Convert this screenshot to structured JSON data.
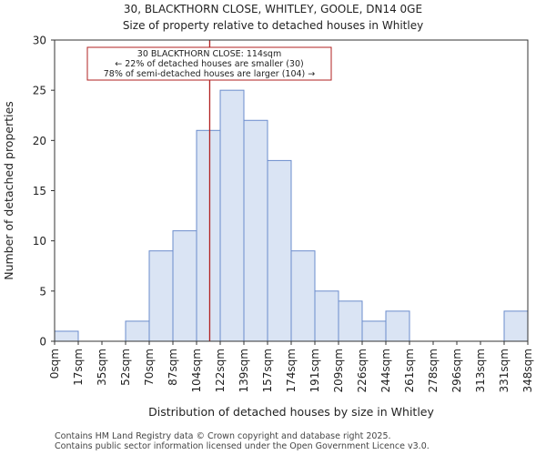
{
  "chart_data": {
    "type": "histogram",
    "title": "30, BLACKTHORN CLOSE, WHITLEY, GOOLE, DN14 0GE",
    "subtitle": "Size of property relative to detached houses in Whitley",
    "xlabel": "Distribution of detached houses by size in Whitley",
    "ylabel": "Number of detached properties",
    "ylim": [
      0,
      30
    ],
    "yticks": [
      0,
      5,
      10,
      15,
      20,
      25,
      30
    ],
    "bin_edges": [
      0,
      17,
      35,
      52,
      70,
      87,
      104,
      122,
      139,
      157,
      174,
      191,
      209,
      226,
      244,
      261,
      278,
      296,
      313,
      331,
      348
    ],
    "categories": [
      "0sqm",
      "17sqm",
      "35sqm",
      "52sqm",
      "70sqm",
      "87sqm",
      "104sqm",
      "122sqm",
      "139sqm",
      "157sqm",
      "174sqm",
      "191sqm",
      "209sqm",
      "226sqm",
      "244sqm",
      "261sqm",
      "278sqm",
      "296sqm",
      "313sqm",
      "331sqm",
      "348sqm"
    ],
    "values": [
      1,
      0,
      0,
      2,
      9,
      11,
      21,
      25,
      22,
      18,
      9,
      5,
      4,
      2,
      3,
      0,
      0,
      0,
      0,
      3
    ],
    "bar_fill": "#dae4f4",
    "bar_edge": "#6b8ccc",
    "marker": {
      "value": 114,
      "color": "#b22222",
      "annotation_lines": [
        "30 BLACKTHORN CLOSE: 114sqm",
        "← 22% of detached houses are smaller (30)",
        "78% of semi-detached houses are larger (104) →"
      ]
    }
  },
  "footer": {
    "line1": "Contains HM Land Registry data © Crown copyright and database right 2025.",
    "line2": "Contains public sector information licensed under the Open Government Licence v3.0."
  }
}
